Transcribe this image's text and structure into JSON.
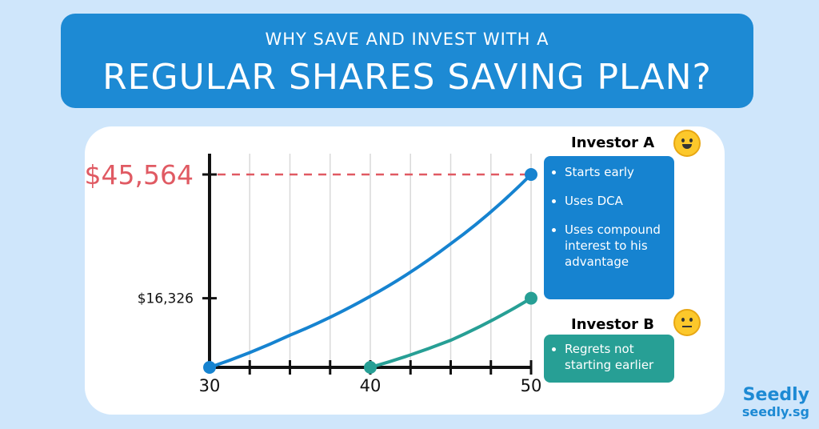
{
  "header": {
    "subtitle": "WHY SAVE AND INVEST WITH A",
    "title": "REGULAR SHARES SAVING PLAN?"
  },
  "colors": {
    "investor_a": "#1683d0",
    "investor_b": "#279f95",
    "highlight": "#e05a63",
    "axis": "#111111"
  },
  "chart_data": {
    "type": "line",
    "x_ticks": [
      30,
      40,
      50
    ],
    "y_labels": [
      {
        "text": "$16,326",
        "value": 16326
      },
      {
        "text": "$45,564",
        "value": 45564
      }
    ],
    "xlim": [
      30,
      50
    ],
    "ylim": [
      0,
      45564
    ],
    "grid": true,
    "series": [
      {
        "name": "Investor A",
        "x": [
          30,
          35,
          40,
          45,
          50
        ],
        "y": [
          0,
          7600,
          16800,
          29200,
          45564
        ]
      },
      {
        "name": "Investor B",
        "x": [
          40,
          45,
          50
        ],
        "y": [
          0,
          6400,
          16326
        ]
      }
    ]
  },
  "investor_a": {
    "title": "Investor A",
    "face": "grinning-face-icon",
    "bullets": [
      "Starts early",
      "Uses DCA",
      "Uses compound interest to his advantage"
    ]
  },
  "investor_b": {
    "title": "Investor B",
    "face": "neutral-face-icon",
    "bullets": [
      "Regrets not starting earlier"
    ]
  },
  "brand": {
    "name": "Seedly",
    "url": "seedly.sg"
  }
}
